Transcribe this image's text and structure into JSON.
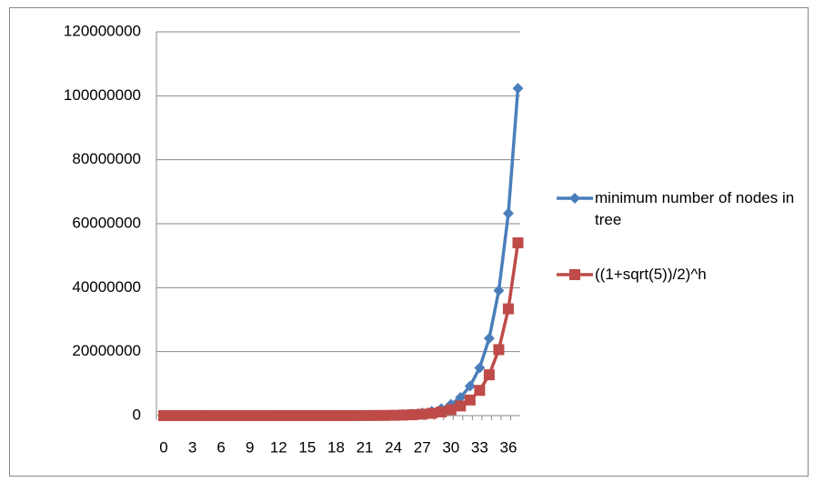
{
  "chart_data": {
    "type": "line",
    "categories": [
      0,
      null,
      null,
      3,
      null,
      null,
      6,
      null,
      null,
      9,
      null,
      null,
      12,
      null,
      null,
      15,
      null,
      null,
      18,
      null,
      null,
      21,
      null,
      null,
      24,
      null,
      null,
      27,
      null,
      null,
      30,
      null,
      null,
      33,
      null,
      null,
      36,
      null
    ],
    "series": [
      {
        "name": "minimum number of nodes in tree",
        "color": "#4a7ebb",
        "marker": "diamond",
        "values": [
          1,
          2,
          4,
          7,
          12,
          20,
          33,
          54,
          88,
          143,
          232,
          376,
          609,
          986,
          1596,
          2583,
          4180,
          6764,
          10945,
          17710,
          28656,
          46367,
          75024,
          121392,
          196417,
          317810,
          514228,
          832039,
          1346268,
          2178308,
          3524577,
          5702886,
          9227464,
          14930351,
          24157816,
          39088168,
          63245985,
          102334154
        ]
      },
      {
        "name": "((1+sqrt(5))/2)^h",
        "color": "#be4b48",
        "marker": "square",
        "values": [
          1,
          1.618,
          2.618,
          4.236,
          6.854,
          11.09,
          17.94,
          29.03,
          46.98,
          76.01,
          122.99,
          199.0,
          322.0,
          521.0,
          843.0,
          1364,
          2207,
          3571,
          5778,
          9349,
          15127,
          24476,
          39603,
          64079,
          103682,
          167761,
          271443,
          439204,
          710647,
          1149851,
          1860498,
          3010349,
          4870847,
          7881196,
          12752043,
          20633239,
          33385282,
          54018521
        ]
      }
    ],
    "ylim": [
      0,
      120000000
    ],
    "yticks": [
      0,
      20000000,
      40000000,
      60000000,
      80000000,
      100000000,
      120000000
    ],
    "grid": true,
    "legend": "right"
  }
}
